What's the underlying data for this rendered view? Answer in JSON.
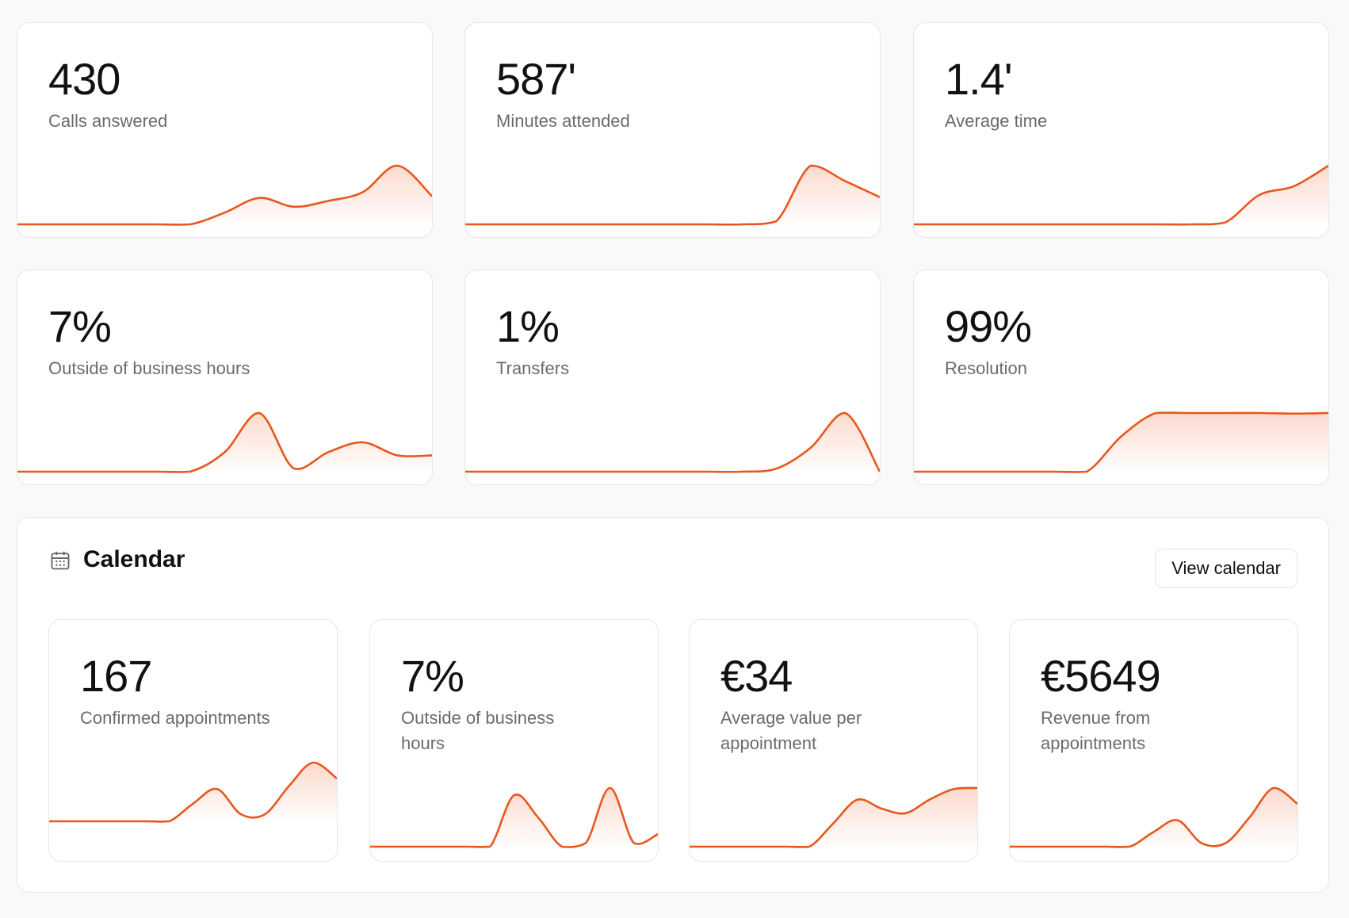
{
  "metrics": [
    {
      "value": "430",
      "label": "Calls answered",
      "trend": [
        0,
        0,
        0,
        0,
        0,
        0,
        20,
        45,
        30,
        40,
        55,
        100,
        48
      ]
    },
    {
      "value": "587'",
      "label": "Minutes attended",
      "trend": [
        0,
        0,
        0,
        0,
        0,
        0,
        0,
        0,
        0,
        5,
        95,
        70,
        44
      ]
    },
    {
      "value": "1.4'",
      "label": "Average time",
      "trend": [
        0,
        0,
        0,
        0,
        0,
        0,
        0,
        0,
        0,
        3,
        50,
        65,
        100
      ]
    },
    {
      "value": "7%",
      "label": "Outside of business hours",
      "trend": [
        0,
        0,
        0,
        0,
        0,
        0,
        30,
        90,
        5,
        30,
        45,
        25,
        25
      ]
    },
    {
      "value": "1%",
      "label": "Transfers",
      "trend": [
        0,
        0,
        0,
        0,
        0,
        0,
        0,
        0,
        0,
        5,
        40,
        98,
        0
      ]
    },
    {
      "value": "99%",
      "label": "Resolution",
      "trend": [
        0,
        0,
        0,
        0,
        0,
        0,
        60,
        100,
        100,
        100,
        100,
        99,
        100
      ]
    }
  ],
  "calendar": {
    "title": "Calendar",
    "button": "View calendar",
    "metrics": [
      {
        "value": "167",
        "label": "Confirmed appointments",
        "trend": [
          0,
          0,
          0,
          0,
          0,
          0,
          30,
          55,
          12,
          12,
          60,
          100,
          73
        ]
      },
      {
        "value": "7%",
        "label": "Outside of business hours",
        "trend": [
          0,
          0,
          0,
          0,
          0,
          0,
          70,
          40,
          0,
          5,
          80,
          5,
          17
        ]
      },
      {
        "value": "€34",
        "label": "Average value per appointment",
        "trend": [
          0,
          0,
          0,
          0,
          0,
          0,
          40,
          80,
          65,
          57,
          80,
          98,
          100
        ]
      },
      {
        "value": "€5649",
        "label": "Revenue from appointments",
        "trend": [
          0,
          0,
          0,
          0,
          0,
          0,
          25,
          45,
          6,
          6,
          50,
          100,
          73
        ]
      }
    ]
  }
}
